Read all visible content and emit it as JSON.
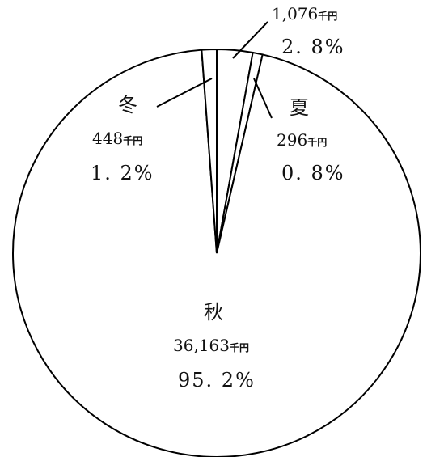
{
  "chart_data": {
    "type": "pie",
    "title": "",
    "unit": "千円",
    "slices": [
      {
        "label": "",
        "value": 1076,
        "display_value": "1,076",
        "percent": "2. 8%"
      },
      {
        "label": "夏",
        "value": 296,
        "display_value": "296",
        "percent": "0. 8%"
      },
      {
        "label": "秋",
        "value": 36163,
        "display_value": "36,163",
        "percent": "95. 2%"
      },
      {
        "label": "冬",
        "value": 448,
        "display_value": "448",
        "percent": "1. 2%"
      }
    ],
    "fill_color": "#ffffff",
    "stroke_color": "#000000",
    "legend": "none",
    "start": "12 o'clock, clockwise"
  }
}
